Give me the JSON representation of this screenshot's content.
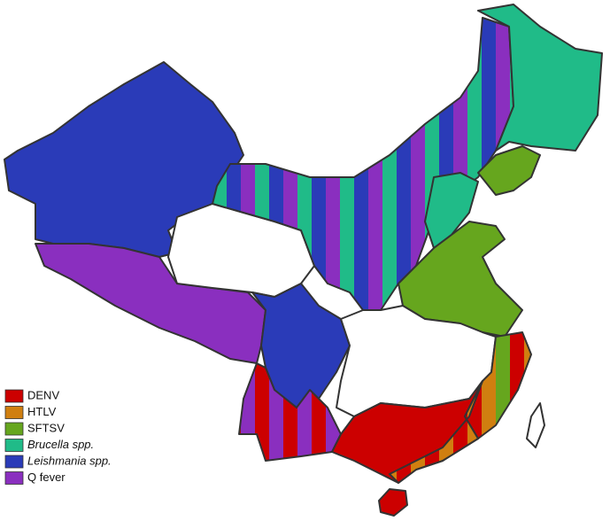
{
  "legend": [
    {
      "label": "DENV",
      "color": "#cc0000",
      "italic": false
    },
    {
      "label": "HTLV",
      "color": "#d07f10",
      "italic": false
    },
    {
      "label": "SFTSV",
      "color": "#66a61e",
      "italic": false
    },
    {
      "label": "Brucella spp.",
      "color": "#20bb88",
      "italic": true
    },
    {
      "label": "Leishmania spp.",
      "color": "#2a3bb8",
      "italic": true
    },
    {
      "label": "Q fever",
      "color": "#8a2fbf",
      "italic": false
    }
  ]
}
